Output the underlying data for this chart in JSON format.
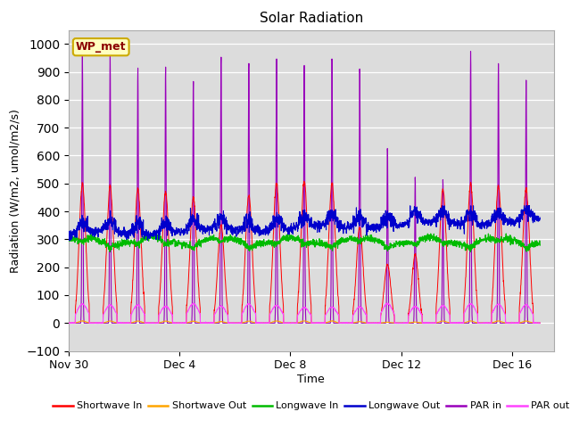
{
  "title": "Solar Radiation",
  "xlabel": "Time",
  "ylabel": "Radiation (W/m2, umol/m2/s)",
  "ylim": [
    -100,
    1050
  ],
  "yticks": [
    -100,
    0,
    100,
    200,
    300,
    400,
    500,
    600,
    700,
    800,
    900,
    1000
  ],
  "xtick_positions": [
    0,
    4,
    8,
    12,
    16
  ],
  "xtick_labels": [
    "Nov 30",
    "Dec 4",
    "Dec 8",
    "Dec 12",
    "Dec 16"
  ],
  "xlim": [
    0,
    17.5
  ],
  "n_days": 17,
  "pts_per_day": 144,
  "bg_color": "#dcdcdc",
  "station_label": "WP_met",
  "station_label_color": "#8b0000",
  "station_box_facecolor": "#ffffc0",
  "station_box_edgecolor": "#ccaa00",
  "colors": {
    "sw_in": "#ff0000",
    "sw_out": "#ffa500",
    "lw_in": "#00bb00",
    "lw_out": "#0000cc",
    "par_in": "#9900bb",
    "par_out": "#ff44ff"
  },
  "legend_labels": [
    "Shortwave In",
    "Shortwave Out",
    "Longwave In",
    "Longwave Out",
    "PAR in",
    "PAR out"
  ]
}
